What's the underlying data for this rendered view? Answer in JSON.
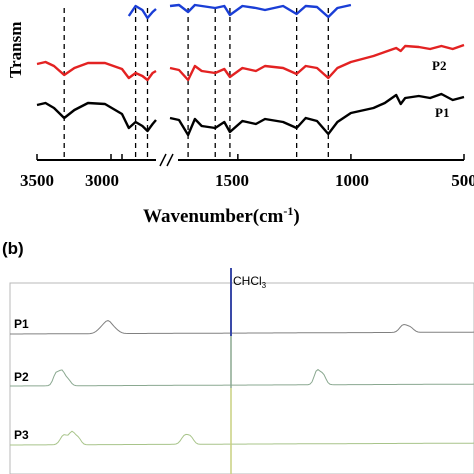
{
  "chart_data": [
    {
      "type": "line",
      "panel": "",
      "ylabel": "Transm",
      "xlabel_main": "Wavenumber(cm",
      "xlabel_sup": "-1",
      "xlabel_tail": ")",
      "xlim": [
        3500,
        500
      ],
      "axis_break_after": 2800,
      "axis_break_resume": 1800,
      "x_ticks": [
        3500,
        3000,
        2500,
        1500,
        1000,
        500
      ],
      "x_tick_labels": [
        "3500",
        "3000",
        "2500",
        "1500",
        "1000",
        "500"
      ],
      "reference_lines": [
        3340,
        2920,
        2850,
        1720,
        1600,
        1535,
        1240,
        1100
      ],
      "series": [
        {
          "name": "P1",
          "color": "#000000",
          "points": [
            [
              3500,
              105
            ],
            [
              3450,
              103
            ],
            [
              3400,
              108
            ],
            [
              3340,
              118
            ],
            [
              3280,
              110
            ],
            [
              3200,
              103
            ],
            [
              3100,
              104
            ],
            [
              3000,
              114
            ],
            [
              2960,
              128
            ],
            [
              2920,
              122
            ],
            [
              2880,
              126
            ],
            [
              2850,
              131
            ],
            [
              2820,
              124
            ],
            [
              2800,
              120
            ],
            [
              1800,
              118
            ],
            [
              1760,
              120
            ],
            [
              1720,
              135
            ],
            [
              1690,
              119
            ],
            [
              1660,
              126
            ],
            [
              1600,
              128
            ],
            [
              1560,
              122
            ],
            [
              1535,
              132
            ],
            [
              1480,
              121
            ],
            [
              1420,
              124
            ],
            [
              1380,
              119
            ],
            [
              1300,
              122
            ],
            [
              1240,
              128
            ],
            [
              1200,
              118
            ],
            [
              1150,
              121
            ],
            [
              1100,
              134
            ],
            [
              1060,
              122
            ],
            [
              1000,
              113
            ],
            [
              900,
              108
            ],
            [
              850,
              103
            ],
            [
              800,
              95
            ],
            [
              780,
              104
            ],
            [
              760,
              98
            ],
            [
              700,
              96
            ],
            [
              650,
              98
            ],
            [
              600,
              94
            ],
            [
              550,
              100
            ],
            [
              500,
              97
            ]
          ]
        },
        {
          "name": "P2",
          "color": "#e32222",
          "points": [
            [
              3500,
              64
            ],
            [
              3450,
              62
            ],
            [
              3400,
              66
            ],
            [
              3340,
              75
            ],
            [
              3280,
              68
            ],
            [
              3200,
              63
            ],
            [
              3100,
              63
            ],
            [
              3000,
              69
            ],
            [
              2960,
              78
            ],
            [
              2920,
              73
            ],
            [
              2880,
              76
            ],
            [
              2850,
              80
            ],
            [
              2820,
              73
            ],
            [
              2800,
              71
            ],
            [
              1800,
              68
            ],
            [
              1760,
              70
            ],
            [
              1720,
              80
            ],
            [
              1690,
              66
            ],
            [
              1660,
              71
            ],
            [
              1600,
              73
            ],
            [
              1560,
              69
            ],
            [
              1535,
              77
            ],
            [
              1480,
              68
            ],
            [
              1420,
              71
            ],
            [
              1380,
              66
            ],
            [
              1300,
              68
            ],
            [
              1240,
              74
            ],
            [
              1200,
              66
            ],
            [
              1150,
              68
            ],
            [
              1100,
              78
            ],
            [
              1060,
              68
            ],
            [
              1000,
              62
            ],
            [
              900,
              56
            ],
            [
              850,
              52
            ],
            [
              800,
              48
            ],
            [
              780,
              51
            ],
            [
              760,
              46
            ],
            [
              700,
              47
            ],
            [
              650,
              49
            ],
            [
              600,
              46
            ],
            [
              550,
              49
            ],
            [
              500,
              45
            ]
          ]
        },
        {
          "name": "P3",
          "color": "#1a3ed6",
          "points": [
            [
              2960,
              16
            ],
            [
              2920,
              6
            ],
            [
              2880,
              10
            ],
            [
              2850,
              18
            ],
            [
              2820,
              12
            ],
            [
              2800,
              9
            ],
            [
              1800,
              6
            ],
            [
              1760,
              5
            ],
            [
              1720,
              12
            ],
            [
              1690,
              5
            ],
            [
              1660,
              6
            ],
            [
              1600,
              8
            ],
            [
              1560,
              6
            ],
            [
              1535,
              15
            ],
            [
              1480,
              6
            ],
            [
              1420,
              8
            ],
            [
              1380,
              10
            ],
            [
              1300,
              6
            ],
            [
              1240,
              14
            ],
            [
              1200,
              6
            ],
            [
              1150,
              7
            ],
            [
              1100,
              17
            ],
            [
              1060,
              8
            ],
            [
              1000,
              5
            ]
          ]
        }
      ]
    },
    {
      "type": "line",
      "panel": "(b)",
      "annotation": "CHCl",
      "annotation_sub": "3",
      "series": [
        {
          "name": "P1",
          "color": "#808080"
        },
        {
          "name": "P2",
          "color": "#8aa890"
        },
        {
          "name": "P3",
          "color": "#a8c48a"
        }
      ]
    }
  ]
}
